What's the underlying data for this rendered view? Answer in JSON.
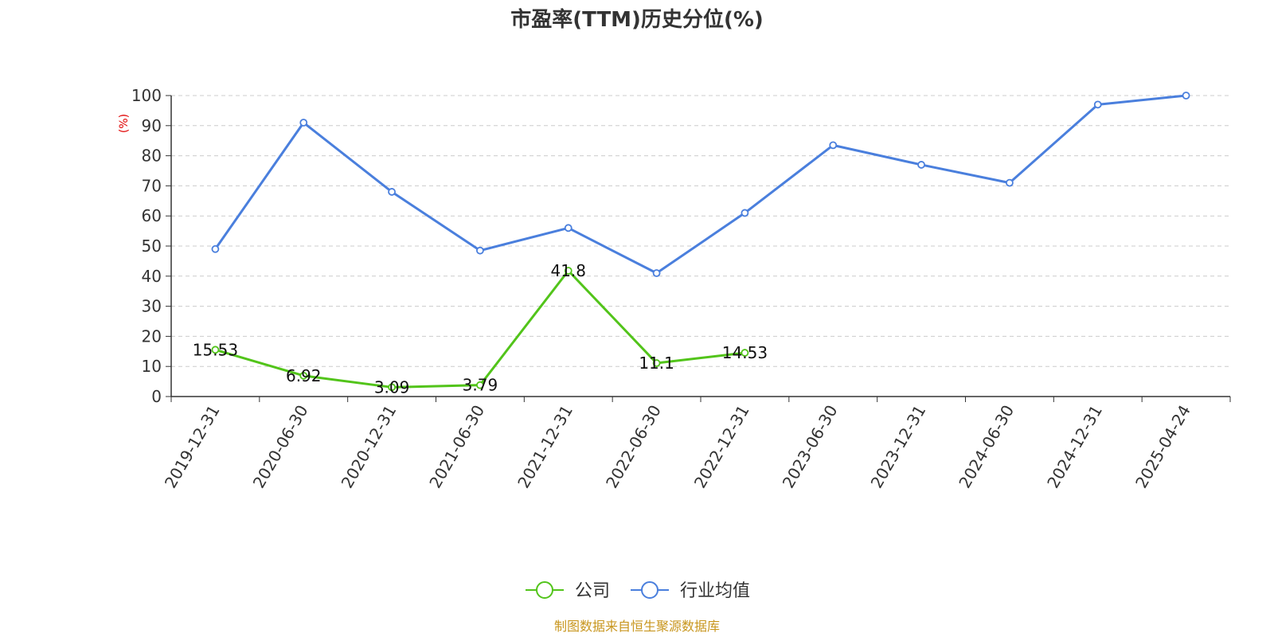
{
  "title": "市盈率(TTM)历史分位(%)",
  "unit_label": "(%)",
  "source": "制图数据来自恒生聚源数据库",
  "colors": {
    "company": "#52c41a",
    "industry": "#4a7fdd",
    "unit": "#e00000",
    "source": "#c8961e",
    "grid": "#cccccc",
    "axis": "#333333"
  },
  "chart_data": {
    "type": "line",
    "title": "市盈率(TTM)历史分位(%)",
    "ylabel": "(%)",
    "ylim": [
      0,
      100
    ],
    "yticks": [
      0,
      10,
      20,
      30,
      40,
      50,
      60,
      70,
      80,
      90,
      100
    ],
    "grid": true,
    "legend_position": "bottom",
    "categories": [
      "2019-12-31",
      "2020-06-30",
      "2020-12-31",
      "2021-06-30",
      "2021-12-31",
      "2022-06-30",
      "2022-12-31",
      "2023-06-30",
      "2023-12-31",
      "2024-06-30",
      "2024-12-31",
      "2025-04-24"
    ],
    "series": [
      {
        "name": "公司",
        "color": "#52c41a",
        "values": [
          15.53,
          6.92,
          3.09,
          3.79,
          41.8,
          11.1,
          14.53,
          null,
          null,
          null,
          null,
          null
        ],
        "labels": [
          "15.53",
          "6.92",
          "3.09",
          "3.79",
          "41.8",
          "11.1",
          "14.53",
          "",
          "",
          "",
          "",
          ""
        ]
      },
      {
        "name": "行业均值",
        "color": "#4a7fdd",
        "values": [
          49,
          91,
          68,
          48.5,
          56,
          41,
          61,
          83.5,
          77,
          71,
          97,
          100
        ],
        "labels": []
      }
    ]
  }
}
